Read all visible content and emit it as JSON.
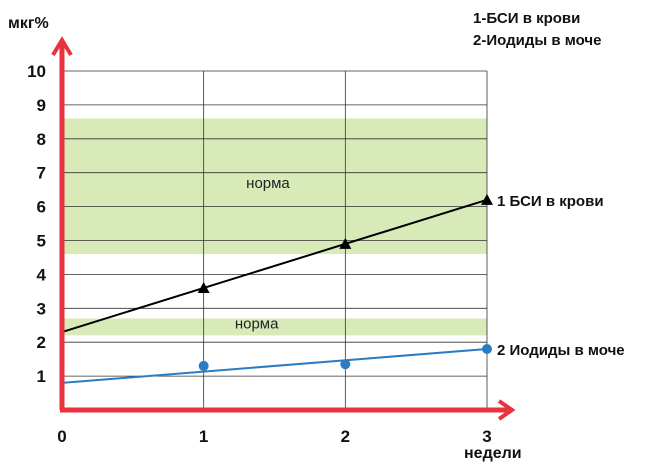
{
  "chart_data": {
    "type": "line",
    "ylabel": "мкг%",
    "xlabel": "недели",
    "xlim": [
      0,
      3
    ],
    "ylim": [
      0,
      10
    ],
    "x_ticks": [
      "0",
      "1",
      "2",
      "3"
    ],
    "y_ticks": [
      "1",
      "2",
      "3",
      "4",
      "5",
      "6",
      "7",
      "8",
      "9",
      "10"
    ],
    "grid": true,
    "legend": [
      "1-БСИ в крови",
      "2-Иодиды в моче"
    ],
    "norm_bands": [
      {
        "label": "норма",
        "from": 4.6,
        "to": 8.6
      },
      {
        "label": "норма",
        "from": 2.2,
        "to": 2.7
      }
    ],
    "series": [
      {
        "name": "1 БСИ в крови",
        "color": "#000000",
        "marker": "triangle",
        "trend": [
          [
            0,
            2.3
          ],
          [
            3,
            6.2
          ]
        ],
        "points": [
          [
            1,
            3.6
          ],
          [
            2,
            4.9
          ],
          [
            3,
            6.2
          ]
        ]
      },
      {
        "name": "2 Иодиды в моче",
        "color": "#2a7cc4",
        "marker": "circle",
        "trend": [
          [
            0,
            0.8
          ],
          [
            3,
            1.8
          ]
        ],
        "points": [
          [
            1,
            1.3
          ],
          [
            2,
            1.35
          ],
          [
            3,
            1.8
          ]
        ]
      }
    ],
    "colors": {
      "axis": "#e8323c",
      "band": "#d7eab8",
      "grid": "#333333"
    }
  }
}
